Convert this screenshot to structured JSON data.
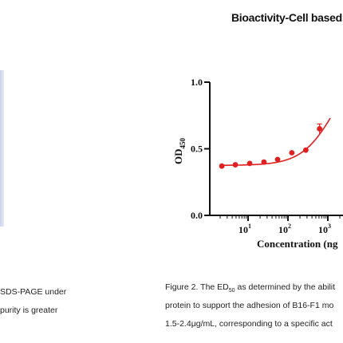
{
  "header": {
    "section_title": "Bioactivity-Cell based a"
  },
  "left_panel": {
    "caption_lines": [
      "SDS-PAGE under",
      "purity is greater"
    ]
  },
  "figure": {
    "caption_lines": [
      "Figure 2. The ED",
      "50",
      " as determined by the abilit",
      "protein to support the adhesion of B16-F1 mo",
      "1.5-2.4μg/mL, corresponding to a specific act"
    ]
  },
  "chart_data": {
    "type": "scatter",
    "title": "",
    "xlabel": "Concentration (ng",
    "ylabel": "OD450",
    "x_scale": "log",
    "y_ticks": [
      "0.0",
      "0.5",
      "1.0"
    ],
    "x_ticks": [
      "10^1",
      "10^2",
      "10^3"
    ],
    "ylim": [
      0,
      1.0
    ],
    "colors": {
      "series": "#e02020",
      "axis": "#111111"
    },
    "series": [
      {
        "points": [
          {
            "x": 2.2,
            "y": 0.37
          },
          {
            "x": 4.8,
            "y": 0.38
          },
          {
            "x": 11,
            "y": 0.39
          },
          {
            "x": 25,
            "y": 0.4
          },
          {
            "x": 55,
            "y": 0.42
          },
          {
            "x": 125,
            "y": 0.47
          },
          {
            "x": 280,
            "y": 0.49
          },
          {
            "x": 620,
            "y": 0.65
          }
        ]
      }
    ]
  }
}
